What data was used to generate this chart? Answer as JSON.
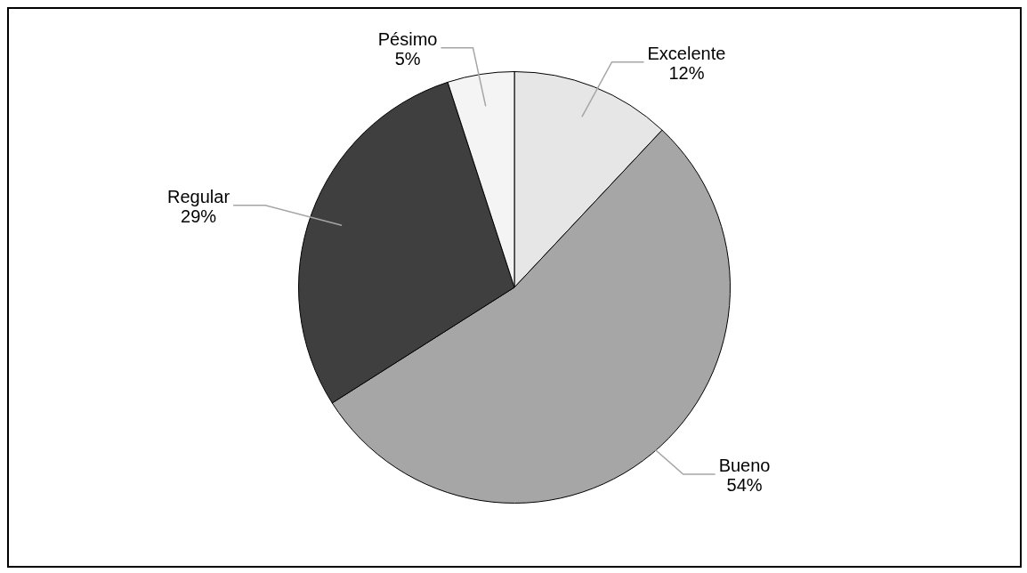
{
  "chart_data": {
    "type": "pie",
    "categories": [
      "Excelente",
      "Bueno",
      "Regular",
      "Pésimo"
    ],
    "values": [
      12,
      54,
      29,
      5
    ],
    "colors": [
      "#e6e6e6",
      "#a6a6a6",
      "#3f3f3f",
      "#f4f4f4"
    ],
    "value_labels": [
      "12%",
      "54%",
      "29%",
      "5%"
    ],
    "legend": false
  }
}
